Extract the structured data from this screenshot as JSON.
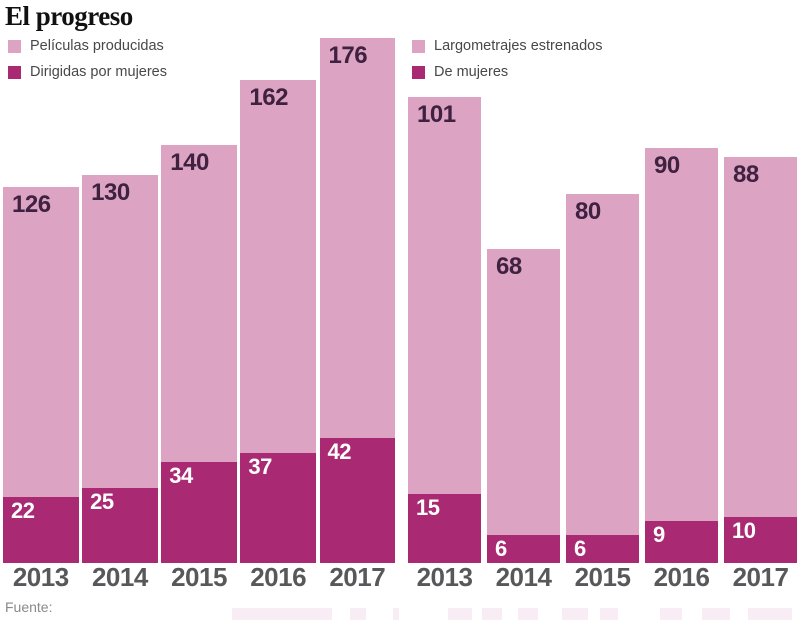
{
  "title": "El progreso",
  "source_label": "Fuente:",
  "colors": {
    "bar_light": "#dca3c3",
    "bar_dark": "#a92a72",
    "value_label_on_light": "#3f2140",
    "value_label_on_dark": "#ffffff",
    "axis_label": "#58585a",
    "legend_text": "#48484a",
    "title_text": "#111111",
    "source_text": "#8a8a8a",
    "watermark": "#f2dfec"
  },
  "chart_data": [
    {
      "type": "bar",
      "panel": "left",
      "title": "",
      "categories": [
        "2013",
        "2014",
        "2015",
        "2016",
        "2017"
      ],
      "series": [
        {
          "name": "Películas producidas",
          "role": "total",
          "color_key": "bar_light",
          "values": [
            126,
            130,
            140,
            162,
            176
          ]
        },
        {
          "name": "Dirigidas por mujeres",
          "role": "subset",
          "color_key": "bar_dark",
          "values": [
            22,
            25,
            34,
            37,
            42
          ]
        }
      ],
      "value_labels": "inside-top-left",
      "legend_position": "top-left",
      "grid": false,
      "xlabel": "",
      "ylabel": "",
      "ylim": [
        0,
        176
      ]
    },
    {
      "type": "bar",
      "panel": "right",
      "title": "",
      "categories": [
        "2013",
        "2014",
        "2015",
        "2016",
        "2017"
      ],
      "series": [
        {
          "name": "Largometrajes estrenados",
          "role": "total",
          "color_key": "bar_light",
          "values": [
            101,
            68,
            80,
            90,
            88
          ]
        },
        {
          "name": "De mujeres",
          "role": "subset",
          "color_key": "bar_dark",
          "values": [
            15,
            6,
            6,
            9,
            10
          ]
        }
      ],
      "value_labels": "inside-top-left",
      "legend_position": "top-left",
      "grid": false,
      "xlabel": "",
      "ylabel": "",
      "ylim": [
        0,
        101
      ]
    }
  ]
}
